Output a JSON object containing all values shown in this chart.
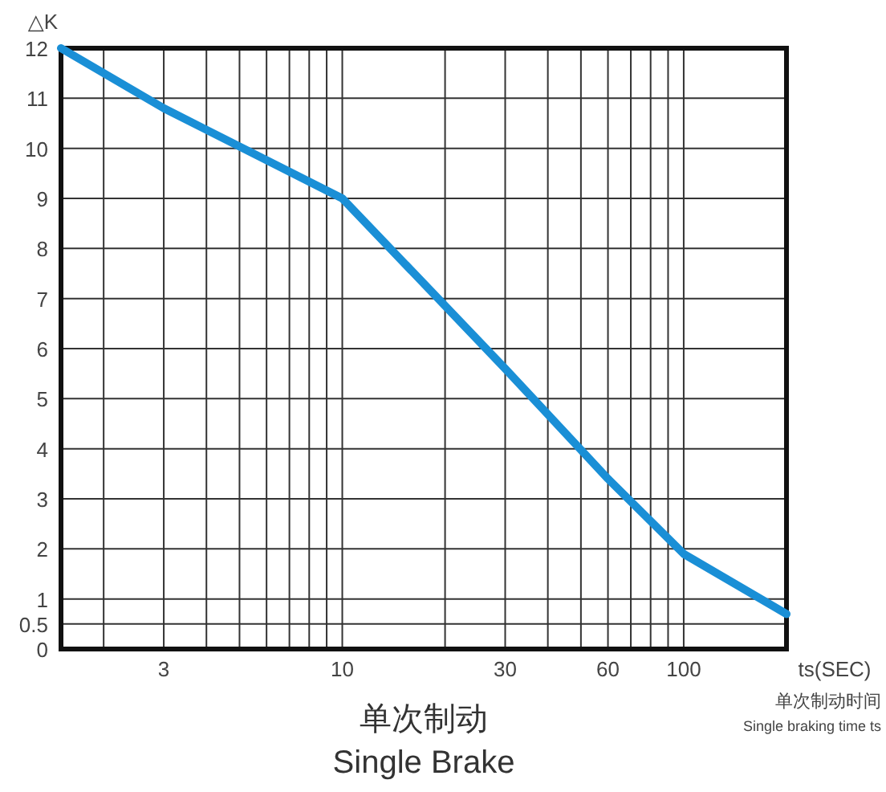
{
  "chart_data": {
    "type": "line",
    "title": "单次制动",
    "subtitle": "Single Brake",
    "xlabel": "ts(SEC)",
    "ylabel": "△K",
    "annotations": [
      "单次制动时间",
      "Single braking time ts"
    ],
    "x": [
      1.5,
      3,
      10,
      30,
      60,
      100,
      200
    ],
    "series": [
      {
        "color": "#1a8fd6",
        "values": [
          12,
          10.8,
          9,
          5.6,
          3.4,
          1.9,
          0.7
        ]
      }
    ],
    "log": "x",
    "xlim": [
      1.5,
      200
    ],
    "xticks": [
      3,
      10,
      30,
      60,
      100
    ],
    "ylim": [
      0,
      12
    ],
    "yticks": [
      0,
      0.5,
      1,
      2,
      3,
      4,
      5,
      6,
      7,
      8,
      9,
      10,
      11,
      12
    ],
    "grid": true,
    "marker": "none",
    "line_style": "solid"
  }
}
